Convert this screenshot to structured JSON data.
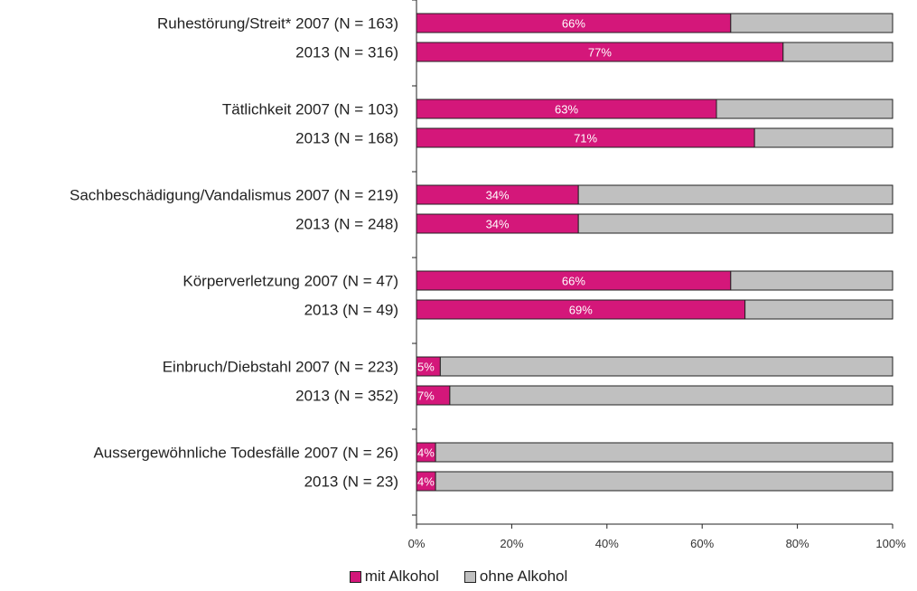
{
  "chart_data": {
    "type": "bar",
    "orientation": "horizontal",
    "stacked": true,
    "categories": [
      "Ruhestörung/Streit* 2007 (N = 163)",
      "2013 (N = 316)",
      "Tätlichkeit 2007 (N = 103)",
      "2013 (N = 168)",
      "Sachbeschädigung/Vandalismus 2007 (N = 219)",
      "2013 (N = 248)",
      "Körperverletzung 2007 (N = 47)",
      "2013 (N = 49)",
      "Einbruch/Diebstahl 2007 (N = 223)",
      "2013 (N = 352)",
      "Aussergewöhnliche Todesfälle 2007 (N = 26)",
      "2013 (N = 23)"
    ],
    "series": [
      {
        "name": "mit Alkohol",
        "color": "#d4177a",
        "values": [
          66,
          77,
          63,
          71,
          34,
          34,
          66,
          69,
          5,
          7,
          4,
          4
        ]
      },
      {
        "name": "ohne Alkohol",
        "color": "#c0c0c0",
        "values": [
          34,
          23,
          37,
          29,
          66,
          66,
          34,
          31,
          95,
          93,
          96,
          96
        ]
      }
    ],
    "data_labels": [
      "66%",
      "77%",
      "63%",
      "71%",
      "34%",
      "34%",
      "66%",
      "69%",
      "5%",
      "7%",
      "4%",
      "4%"
    ],
    "xlim": [
      0,
      100
    ],
    "x_ticks": [
      "0%",
      "20%",
      "40%",
      "60%",
      "80%",
      "100%"
    ],
    "grid": false,
    "legend_position": "bottom"
  }
}
